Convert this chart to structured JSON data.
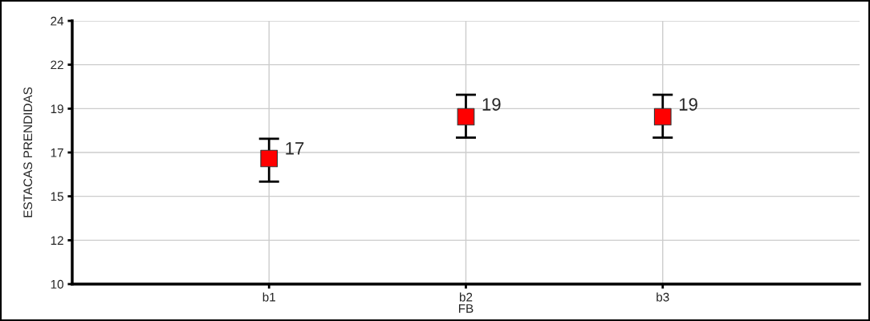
{
  "chart_data": {
    "type": "scatter",
    "xlabel": "FB",
    "ylabel": "ESTACAS PRENDIDAS",
    "categories": [
      "b1",
      "b2",
      "b3"
    ],
    "series": [
      {
        "color": "#ff0000",
        "values": [
          16.68,
          18.9,
          18.9
        ],
        "errors": [
          [
            15.45,
            17.73
          ],
          [
            17.79,
            20.07
          ],
          [
            17.79,
            20.07
          ]
        ],
        "value_labels": [
          "17",
          "19",
          "19"
        ]
      }
    ],
    "marker": "square",
    "ylim": [
      10,
      24
    ],
    "yticks": [
      10,
      {
        "value": 12.33,
        "label": "12"
      },
      {
        "value": 14.67,
        "label": "15"
      },
      17,
      {
        "value": 19.33,
        "label": "19"
      },
      {
        "value": 21.67,
        "label": "22"
      },
      24
    ],
    "grid": true,
    "legend": false
  }
}
